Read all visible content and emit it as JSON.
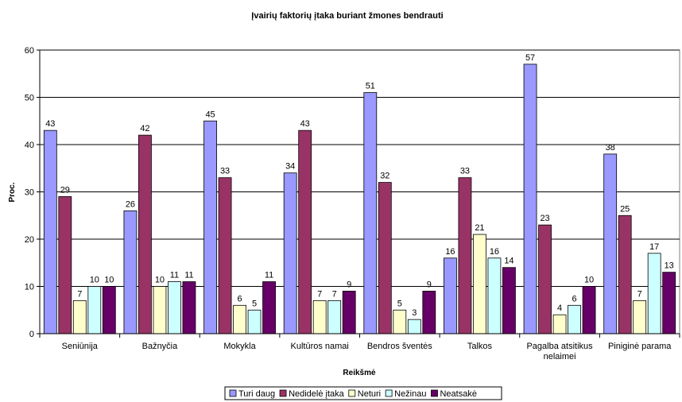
{
  "chart_data": {
    "type": "bar",
    "title": "Įvairių faktorių įtaka buriant žmones bendrauti",
    "xlabel": "Reikšmė",
    "ylabel": "Proc.",
    "ylim": [
      0,
      60
    ],
    "yticks": [
      0,
      10,
      20,
      30,
      40,
      50,
      60
    ],
    "grid": true,
    "legend_position": "bottom",
    "categories": [
      [
        "Seniūnija"
      ],
      [
        "Bažnyčia"
      ],
      [
        "Mokykla"
      ],
      [
        "Kultūros namai"
      ],
      [
        "Bendros šventės"
      ],
      [
        "Talkos"
      ],
      [
        "Pagalba atsitikus",
        "nelaimei"
      ],
      [
        "Piniginė parama"
      ]
    ],
    "series": [
      {
        "name": "Turi daug",
        "color": "#9999ff",
        "values": [
          43,
          26,
          45,
          34,
          51,
          16,
          57,
          38
        ]
      },
      {
        "name": "Nedidelė įtaka",
        "color": "#993366",
        "values": [
          29,
          42,
          33,
          43,
          32,
          33,
          23,
          25
        ]
      },
      {
        "name": "Neturi",
        "color": "#ffffcc",
        "values": [
          7,
          10,
          6,
          7,
          5,
          21,
          4,
          7
        ]
      },
      {
        "name": "Nežinau",
        "color": "#ccffff",
        "values": [
          10,
          11,
          5,
          7,
          3,
          16,
          6,
          17
        ]
      },
      {
        "name": "Neatsakė",
        "color": "#660066",
        "values": [
          10,
          11,
          11,
          9,
          9,
          14,
          10,
          13
        ]
      }
    ]
  }
}
